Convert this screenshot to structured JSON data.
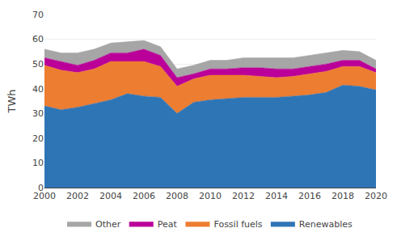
{
  "chart_data": {
    "type": "area",
    "stacked": true,
    "x": [
      2000,
      2001,
      2002,
      2003,
      2004,
      2005,
      2006,
      2007,
      2008,
      2009,
      2010,
      2011,
      2012,
      2013,
      2014,
      2015,
      2016,
      2017,
      2018,
      2019,
      2020
    ],
    "series": [
      {
        "name": "Renewables",
        "color": "#2E75B6",
        "values": [
          33.0,
          31.5,
          32.5,
          34.0,
          35.5,
          38.0,
          37.0,
          36.5,
          30.0,
          34.5,
          35.5,
          36.0,
          36.5,
          36.5,
          36.5,
          37.0,
          37.5,
          38.5,
          41.5,
          41.0,
          39.5
        ]
      },
      {
        "name": "Fossil fuels",
        "color": "#ED7D31",
        "values": [
          16.5,
          16.0,
          14.0,
          14.0,
          15.5,
          13.0,
          14.0,
          12.5,
          11.0,
          9.5,
          10.0,
          9.5,
          9.0,
          8.5,
          8.0,
          8.0,
          8.5,
          8.5,
          7.5,
          8.0,
          7.0
        ]
      },
      {
        "name": "Peat",
        "color": "#BB0099",
        "values": [
          3.0,
          3.5,
          3.0,
          3.5,
          3.5,
          3.5,
          5.0,
          4.5,
          3.5,
          2.0,
          2.5,
          2.5,
          3.0,
          3.5,
          3.5,
          3.0,
          3.0,
          3.0,
          2.5,
          2.5,
          1.5
        ]
      },
      {
        "name": "Other",
        "color": "#A6A6A6",
        "values": [
          3.5,
          3.5,
          5.0,
          4.5,
          4.0,
          4.5,
          3.5,
          3.5,
          3.5,
          3.5,
          3.5,
          3.5,
          4.0,
          4.0,
          4.5,
          4.5,
          4.5,
          4.5,
          4.0,
          3.5,
          3.5
        ]
      }
    ],
    "ylabel": "TWh",
    "xlim": [
      2000,
      2020
    ],
    "xticks": [
      2000,
      2002,
      2004,
      2006,
      2008,
      2010,
      2012,
      2014,
      2016,
      2018,
      2020
    ],
    "ylim": [
      0,
      70
    ],
    "yticks": [
      0,
      10,
      20,
      30,
      40,
      50,
      60,
      70
    ],
    "grid": true,
    "legend": "bottom"
  }
}
